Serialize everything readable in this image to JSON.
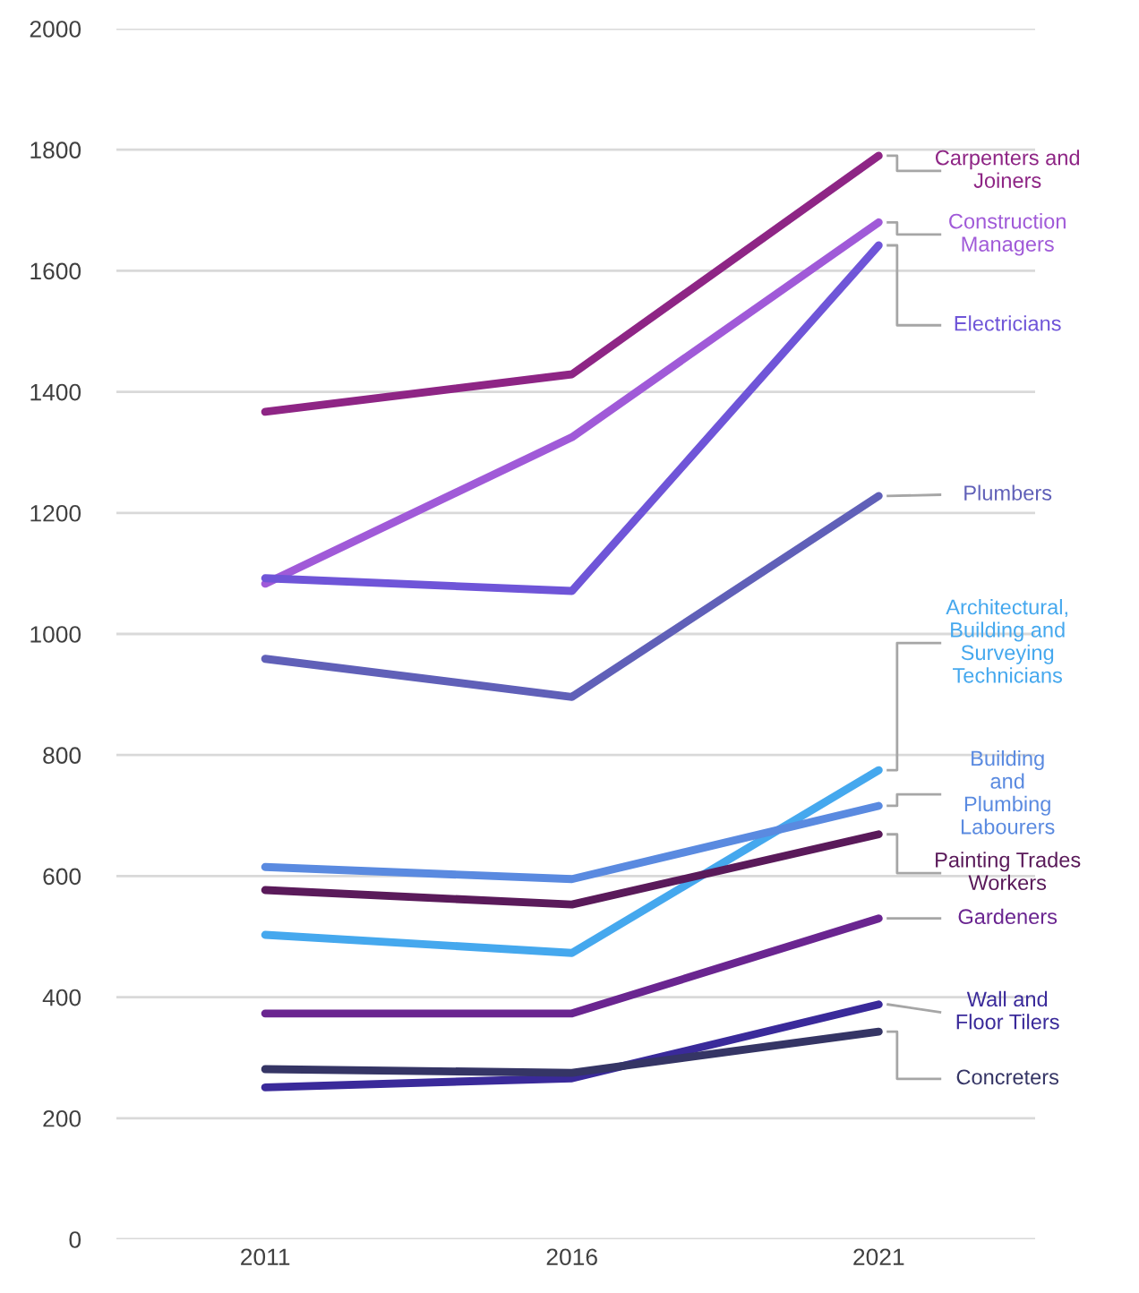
{
  "chart_data": {
    "type": "line",
    "categories": [
      "2011",
      "2016",
      "2021"
    ],
    "series": [
      {
        "name": "Carpenters and Joiners",
        "color": "#8e2585",
        "values": [
          1367,
          1429,
          1790
        ]
      },
      {
        "name": "Construction Managers",
        "color": "#a05ad8",
        "values": [
          1083,
          1325,
          1680
        ]
      },
      {
        "name": "Electricians",
        "color": "#6f55d8",
        "values": [
          1092,
          1071,
          1642
        ]
      },
      {
        "name": "Plumbers",
        "color": "#6060b8",
        "values": [
          959,
          896,
          1228
        ]
      },
      {
        "name": "Architectural, Building and Surveying Technicians",
        "color": "#45a8ee",
        "values": [
          503,
          473,
          775
        ]
      },
      {
        "name": "Building and Plumbing Labourers",
        "color": "#5a8ae0",
        "values": [
          615,
          595,
          716
        ]
      },
      {
        "name": "Painting Trades Workers",
        "color": "#5a1a5a",
        "values": [
          577,
          553,
          669
        ]
      },
      {
        "name": "Gardeners",
        "color": "#6a2590",
        "values": [
          373,
          373,
          530
        ]
      },
      {
        "name": "Wall and Floor Tilers",
        "color": "#3a2a9a",
        "values": [
          251,
          266,
          388
        ]
      },
      {
        "name": "Concreters",
        "color": "#353565",
        "values": [
          281,
          275,
          343
        ]
      }
    ],
    "ylim": [
      0,
      2000
    ],
    "yticks": [
      0,
      200,
      400,
      600,
      800,
      1000,
      1200,
      1400,
      1600,
      1800,
      2000
    ],
    "grid": "y",
    "legend": false,
    "marker": "none",
    "line_style": "solid"
  }
}
